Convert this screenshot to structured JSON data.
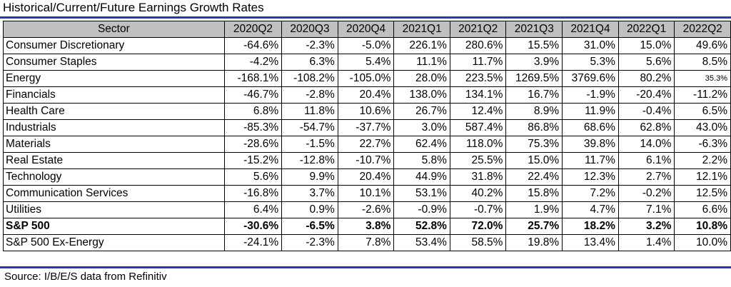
{
  "title": "Historical/Current/Future Earnings Growth Rates",
  "source": "Source: I/B/E/S data from Refinitiv",
  "chart_data": {
    "type": "table",
    "title": "Historical/Current/Future Earnings Growth Rates",
    "columns": [
      "Sector",
      "2020Q2",
      "2020Q3",
      "2020Q4",
      "2021Q1",
      "2021Q2",
      "2021Q3",
      "2021Q4",
      "2022Q1",
      "2022Q2"
    ],
    "rows": [
      {
        "sector": "Consumer Discretionary",
        "values": [
          "-64.6%",
          "-2.3%",
          "-5.0%",
          "226.1%",
          "280.6%",
          "15.5%",
          "31.0%",
          "15.0%",
          "49.6%"
        ]
      },
      {
        "sector": "Consumer Staples",
        "values": [
          "-4.2%",
          "6.3%",
          "5.4%",
          "11.1%",
          "11.7%",
          "3.9%",
          "5.3%",
          "5.6%",
          "8.5%"
        ]
      },
      {
        "sector": "Energy",
        "values": [
          "-168.1%",
          "-108.2%",
          "-105.0%",
          "28.0%",
          "223.5%",
          "1269.5%",
          "3769.6%",
          "80.2%",
          "35.3%"
        ]
      },
      {
        "sector": "Financials",
        "values": [
          "-46.7%",
          "-2.8%",
          "20.4%",
          "138.0%",
          "134.1%",
          "16.7%",
          "-1.9%",
          "-20.4%",
          "-11.2%"
        ]
      },
      {
        "sector": "Health Care",
        "values": [
          "6.8%",
          "11.8%",
          "10.6%",
          "26.7%",
          "12.4%",
          "8.9%",
          "11.9%",
          "-0.4%",
          "6.5%"
        ]
      },
      {
        "sector": "Industrials",
        "values": [
          "-85.3%",
          "-54.7%",
          "-37.7%",
          "3.0%",
          "587.4%",
          "86.8%",
          "68.6%",
          "62.8%",
          "43.0%"
        ]
      },
      {
        "sector": "Materials",
        "values": [
          "-28.6%",
          "-1.5%",
          "22.7%",
          "62.4%",
          "118.0%",
          "75.3%",
          "39.8%",
          "14.0%",
          "-6.3%"
        ]
      },
      {
        "sector": "Real Estate",
        "values": [
          "-15.2%",
          "-12.8%",
          "-10.7%",
          "5.8%",
          "25.5%",
          "15.0%",
          "11.7%",
          "6.1%",
          "2.2%"
        ]
      },
      {
        "sector": "Technology",
        "values": [
          "5.6%",
          "9.9%",
          "20.4%",
          "44.9%",
          "31.8%",
          "22.4%",
          "12.3%",
          "2.7%",
          "12.1%"
        ]
      },
      {
        "sector": "Communication Services",
        "values": [
          "-16.8%",
          "3.7%",
          "10.1%",
          "53.1%",
          "40.2%",
          "15.8%",
          "7.2%",
          "-0.2%",
          "12.5%"
        ]
      },
      {
        "sector": "Utilities",
        "values": [
          "6.4%",
          "0.9%",
          "-2.6%",
          "-0.9%",
          "-0.7%",
          "1.9%",
          "4.7%",
          "7.1%",
          "6.6%"
        ]
      },
      {
        "sector": "S&P 500",
        "bold": true,
        "values": [
          "-30.6%",
          "-6.5%",
          "3.8%",
          "52.8%",
          "72.0%",
          "25.7%",
          "18.2%",
          "3.2%",
          "10.8%"
        ]
      },
      {
        "sector": "S&P 500 Ex-Energy",
        "values": [
          "-24.1%",
          "-2.3%",
          "7.8%",
          "53.4%",
          "58.5%",
          "19.8%",
          "13.4%",
          "1.4%",
          "10.0%"
        ]
      }
    ]
  }
}
